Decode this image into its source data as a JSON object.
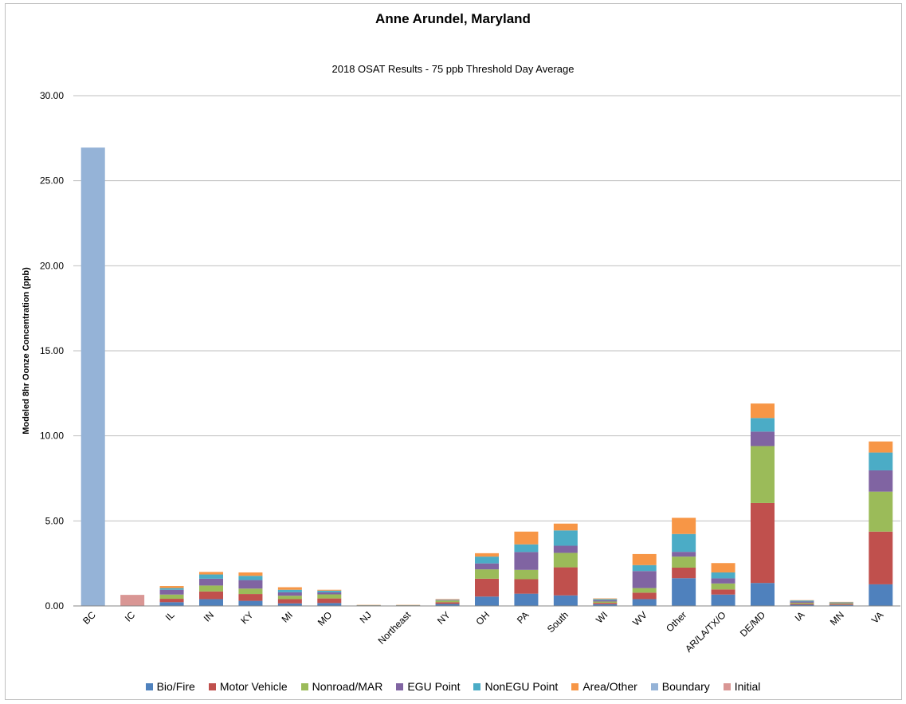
{
  "chart_data": {
    "type": "bar",
    "stacked": true,
    "title": "Anne Arundel, Maryland",
    "subtitle": "2018 OSAT Results - 75 ppb Threshold Day Average",
    "ylabel": "Modeled 8hr Oonze Concentration (ppb)",
    "xlabel": "",
    "ylim": [
      0,
      30
    ],
    "yticks": [
      "0.00",
      "5.00",
      "10.00",
      "15.00",
      "20.00",
      "25.00",
      "30.00"
    ],
    "grid": true,
    "legend_position": "bottom",
    "categories": [
      "BC",
      "IC",
      "IL",
      "IN",
      "KY",
      "MI",
      "MO",
      "NJ",
      "Northeast",
      "NY",
      "OH",
      "PA",
      "South",
      "WI",
      "WV",
      "Other",
      "AR/LA/TX/O",
      "DE/MD",
      "IA",
      "MN",
      "VA"
    ],
    "series": [
      {
        "name": "Bio/Fire",
        "color": "#4f81bd",
        "values": [
          0,
          0,
          0.22,
          0.4,
          0.3,
          0.15,
          0.17,
          0.01,
          0.01,
          0.12,
          0.55,
          0.72,
          0.62,
          0.1,
          0.4,
          1.63,
          0.67,
          1.35,
          0.07,
          0.06,
          1.27
        ]
      },
      {
        "name": "Motor Vehicle",
        "color": "#c0504d",
        "values": [
          0,
          0,
          0.2,
          0.45,
          0.4,
          0.25,
          0.27,
          0.01,
          0.01,
          0.1,
          1.05,
          0.85,
          1.65,
          0.08,
          0.38,
          0.62,
          0.3,
          4.7,
          0.06,
          0.05,
          3.1
        ]
      },
      {
        "name": "Nonroad/MAR",
        "color": "#9bbb59",
        "values": [
          0,
          0,
          0.25,
          0.35,
          0.32,
          0.2,
          0.24,
          0.01,
          0.01,
          0.1,
          0.55,
          0.55,
          0.85,
          0.08,
          0.27,
          0.65,
          0.35,
          3.35,
          0.06,
          0.05,
          2.35
        ]
      },
      {
        "name": "EGU Point",
        "color": "#8064a2",
        "values": [
          0,
          0,
          0.28,
          0.4,
          0.5,
          0.2,
          0.12,
          0.01,
          0.01,
          0.03,
          0.35,
          1.05,
          0.42,
          0.08,
          1.0,
          0.28,
          0.3,
          0.85,
          0.07,
          0.03,
          1.25
        ]
      },
      {
        "name": "NonEGU Point",
        "color": "#4bacc6",
        "values": [
          0,
          0,
          0.1,
          0.25,
          0.25,
          0.15,
          0.1,
          0.01,
          0.01,
          0.02,
          0.4,
          0.45,
          0.9,
          0.06,
          0.35,
          1.05,
          0.35,
          0.8,
          0.06,
          0.03,
          1.05
        ]
      },
      {
        "name": "Area/Other",
        "color": "#f79646",
        "values": [
          0,
          0,
          0.12,
          0.15,
          0.2,
          0.15,
          0.05,
          0.01,
          0.01,
          0.03,
          0.2,
          0.75,
          0.4,
          0.04,
          0.65,
          0.95,
          0.55,
          0.85,
          0.02,
          0.02,
          0.65
        ]
      },
      {
        "name": "Boundary",
        "color": "#95b3d7",
        "values": [
          26.95,
          0,
          0,
          0,
          0,
          0,
          0,
          0,
          0,
          0,
          0,
          0,
          0,
          0,
          0,
          0,
          0,
          0,
          0,
          0,
          0
        ]
      },
      {
        "name": "Initial",
        "color": "#d99694",
        "values": [
          0,
          0.65,
          0,
          0,
          0,
          0,
          0,
          0,
          0,
          0,
          0,
          0,
          0,
          0,
          0,
          0,
          0,
          0,
          0,
          0,
          0
        ]
      }
    ]
  }
}
